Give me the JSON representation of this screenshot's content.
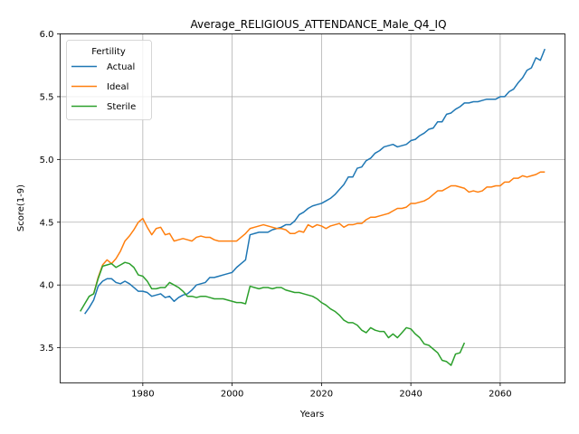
{
  "chart_data": {
    "type": "line",
    "title": "Average_RELIGIOUS_ATTENDANCE_Male_Q4_IQ",
    "xlabel": "Years",
    "ylabel": "Score(1-9)",
    "xlim": [
      1961.5,
      2074.5
    ],
    "ylim": [
      3.22,
      6.0
    ],
    "xticks": [
      1980,
      2000,
      2020,
      2040,
      2060
    ],
    "yticks": [
      3.5,
      4.0,
      4.5,
      5.0,
      5.5,
      6.0
    ],
    "xtick_labels": [
      "1980",
      "2000",
      "2020",
      "2040",
      "2060"
    ],
    "ytick_labels": [
      "3.5",
      "4.0",
      "4.5",
      "5.0",
      "5.5",
      "6.0"
    ],
    "grid": true,
    "legend": {
      "title": "Fertility",
      "placement": "top-left"
    },
    "series": [
      {
        "name": "Actual",
        "color": "#1f77b4",
        "points": [
          [
            1967,
            3.77
          ],
          [
            1968,
            3.82
          ],
          [
            1969,
            3.88
          ],
          [
            1970,
            3.99
          ],
          [
            1971,
            4.03
          ],
          [
            1972,
            4.05
          ],
          [
            1973,
            4.05
          ],
          [
            1974,
            4.02
          ],
          [
            1975,
            4.01
          ],
          [
            1976,
            4.03
          ],
          [
            1977,
            4.01
          ],
          [
            1978,
            3.98
          ],
          [
            1979,
            3.95
          ],
          [
            1980,
            3.95
          ],
          [
            1981,
            3.94
          ],
          [
            1982,
            3.91
          ],
          [
            1983,
            3.92
          ],
          [
            1984,
            3.93
          ],
          [
            1985,
            3.9
          ],
          [
            1986,
            3.91
          ],
          [
            1987,
            3.87
          ],
          [
            1988,
            3.9
          ],
          [
            1989,
            3.92
          ],
          [
            1990,
            3.93
          ],
          [
            1991,
            3.96
          ],
          [
            1992,
            4.0
          ],
          [
            1993,
            4.01
          ],
          [
            1994,
            4.02
          ],
          [
            1995,
            4.06
          ],
          [
            1996,
            4.06
          ],
          [
            1997,
            4.07
          ],
          [
            1998,
            4.08
          ],
          [
            1999,
            4.09
          ],
          [
            2000,
            4.1
          ],
          [
            2001,
            4.14
          ],
          [
            2002,
            4.17
          ],
          [
            2003,
            4.2
          ],
          [
            2004,
            4.4
          ],
          [
            2005,
            4.41
          ],
          [
            2006,
            4.42
          ],
          [
            2007,
            4.42
          ],
          [
            2008,
            4.42
          ],
          [
            2009,
            4.44
          ],
          [
            2010,
            4.45
          ],
          [
            2011,
            4.46
          ],
          [
            2012,
            4.48
          ],
          [
            2013,
            4.48
          ],
          [
            2014,
            4.51
          ],
          [
            2015,
            4.56
          ],
          [
            2016,
            4.58
          ],
          [
            2017,
            4.61
          ],
          [
            2018,
            4.63
          ],
          [
            2019,
            4.64
          ],
          [
            2020,
            4.65
          ],
          [
            2021,
            4.67
          ],
          [
            2022,
            4.69
          ],
          [
            2023,
            4.72
          ],
          [
            2024,
            4.76
          ],
          [
            2025,
            4.8
          ],
          [
            2026,
            4.86
          ],
          [
            2027,
            4.86
          ],
          [
            2028,
            4.93
          ],
          [
            2029,
            4.94
          ],
          [
            2030,
            4.99
          ],
          [
            2031,
            5.01
          ],
          [
            2032,
            5.05
          ],
          [
            2033,
            5.07
          ],
          [
            2034,
            5.1
          ],
          [
            2035,
            5.11
          ],
          [
            2036,
            5.12
          ],
          [
            2037,
            5.1
          ],
          [
            2038,
            5.11
          ],
          [
            2039,
            5.12
          ],
          [
            2040,
            5.15
          ],
          [
            2041,
            5.16
          ],
          [
            2042,
            5.19
          ],
          [
            2043,
            5.21
          ],
          [
            2044,
            5.24
          ],
          [
            2045,
            5.25
          ],
          [
            2046,
            5.3
          ],
          [
            2047,
            5.3
          ],
          [
            2048,
            5.36
          ],
          [
            2049,
            5.37
          ],
          [
            2050,
            5.4
          ],
          [
            2051,
            5.42
          ],
          [
            2052,
            5.45
          ],
          [
            2053,
            5.45
          ],
          [
            2054,
            5.46
          ],
          [
            2055,
            5.46
          ],
          [
            2056,
            5.47
          ],
          [
            2057,
            5.48
          ],
          [
            2058,
            5.48
          ],
          [
            2059,
            5.48
          ],
          [
            2060,
            5.5
          ],
          [
            2061,
            5.5
          ],
          [
            2062,
            5.54
          ],
          [
            2063,
            5.56
          ],
          [
            2064,
            5.61
          ],
          [
            2065,
            5.65
          ],
          [
            2066,
            5.71
          ],
          [
            2067,
            5.73
          ],
          [
            2068,
            5.81
          ],
          [
            2069,
            5.79
          ],
          [
            2070,
            5.88
          ]
        ]
      },
      {
        "name": "Ideal",
        "color": "#ff7f0e",
        "points": [
          [
            1969,
            3.93
          ],
          [
            1970,
            4.06
          ],
          [
            1971,
            4.16
          ],
          [
            1972,
            4.2
          ],
          [
            1973,
            4.17
          ],
          [
            1974,
            4.21
          ],
          [
            1975,
            4.27
          ],
          [
            1976,
            4.35
          ],
          [
            1977,
            4.39
          ],
          [
            1978,
            4.44
          ],
          [
            1979,
            4.5
          ],
          [
            1980,
            4.53
          ],
          [
            1981,
            4.46
          ],
          [
            1982,
            4.4
          ],
          [
            1983,
            4.45
          ],
          [
            1984,
            4.46
          ],
          [
            1985,
            4.4
          ],
          [
            1986,
            4.41
          ],
          [
            1987,
            4.35
          ],
          [
            1988,
            4.36
          ],
          [
            1989,
            4.37
          ],
          [
            1990,
            4.36
          ],
          [
            1991,
            4.35
          ],
          [
            1992,
            4.38
          ],
          [
            1993,
            4.39
          ],
          [
            1994,
            4.38
          ],
          [
            1995,
            4.38
          ],
          [
            1996,
            4.36
          ],
          [
            1997,
            4.35
          ],
          [
            1998,
            4.35
          ],
          [
            1999,
            4.35
          ],
          [
            2000,
            4.35
          ],
          [
            2001,
            4.35
          ],
          [
            2002,
            4.38
          ],
          [
            2003,
            4.41
          ],
          [
            2004,
            4.45
          ],
          [
            2005,
            4.46
          ],
          [
            2006,
            4.47
          ],
          [
            2007,
            4.48
          ],
          [
            2008,
            4.47
          ],
          [
            2009,
            4.46
          ],
          [
            2010,
            4.45
          ],
          [
            2011,
            4.45
          ],
          [
            2012,
            4.44
          ],
          [
            2013,
            4.41
          ],
          [
            2014,
            4.41
          ],
          [
            2015,
            4.43
          ],
          [
            2016,
            4.42
          ],
          [
            2017,
            4.48
          ],
          [
            2018,
            4.46
          ],
          [
            2019,
            4.48
          ],
          [
            2020,
            4.47
          ],
          [
            2021,
            4.45
          ],
          [
            2022,
            4.47
          ],
          [
            2023,
            4.48
          ],
          [
            2024,
            4.49
          ],
          [
            2025,
            4.46
          ],
          [
            2026,
            4.48
          ],
          [
            2027,
            4.48
          ],
          [
            2028,
            4.49
          ],
          [
            2029,
            4.49
          ],
          [
            2030,
            4.52
          ],
          [
            2031,
            4.54
          ],
          [
            2032,
            4.54
          ],
          [
            2033,
            4.55
          ],
          [
            2034,
            4.56
          ],
          [
            2035,
            4.57
          ],
          [
            2036,
            4.59
          ],
          [
            2037,
            4.61
          ],
          [
            2038,
            4.61
          ],
          [
            2039,
            4.62
          ],
          [
            2040,
            4.65
          ],
          [
            2041,
            4.65
          ],
          [
            2042,
            4.66
          ],
          [
            2043,
            4.67
          ],
          [
            2044,
            4.69
          ],
          [
            2045,
            4.72
          ],
          [
            2046,
            4.75
          ],
          [
            2047,
            4.75
          ],
          [
            2048,
            4.77
          ],
          [
            2049,
            4.79
          ],
          [
            2050,
            4.79
          ],
          [
            2051,
            4.78
          ],
          [
            2052,
            4.77
          ],
          [
            2053,
            4.74
          ],
          [
            2054,
            4.75
          ],
          [
            2055,
            4.74
          ],
          [
            2056,
            4.75
          ],
          [
            2057,
            4.78
          ],
          [
            2058,
            4.78
          ],
          [
            2059,
            4.79
          ],
          [
            2060,
            4.79
          ],
          [
            2061,
            4.82
          ],
          [
            2062,
            4.82
          ],
          [
            2063,
            4.85
          ],
          [
            2064,
            4.85
          ],
          [
            2065,
            4.87
          ],
          [
            2066,
            4.86
          ],
          [
            2067,
            4.87
          ],
          [
            2068,
            4.88
          ],
          [
            2069,
            4.9
          ],
          [
            2070,
            4.9
          ]
        ]
      },
      {
        "name": "Sterile",
        "color": "#2ca02c",
        "points": [
          [
            1966,
            3.79
          ],
          [
            1967,
            3.85
          ],
          [
            1968,
            3.91
          ],
          [
            1969,
            3.93
          ],
          [
            1970,
            4.05
          ],
          [
            1971,
            4.15
          ],
          [
            1972,
            4.16
          ],
          [
            1973,
            4.17
          ],
          [
            1974,
            4.14
          ],
          [
            1975,
            4.16
          ],
          [
            1976,
            4.18
          ],
          [
            1977,
            4.17
          ],
          [
            1978,
            4.14
          ],
          [
            1979,
            4.08
          ],
          [
            1980,
            4.07
          ],
          [
            1981,
            4.03
          ],
          [
            1982,
            3.97
          ],
          [
            1983,
            3.97
          ],
          [
            1984,
            3.98
          ],
          [
            1985,
            3.98
          ],
          [
            1986,
            4.02
          ],
          [
            1987,
            4.0
          ],
          [
            1988,
            3.98
          ],
          [
            1989,
            3.95
          ],
          [
            1990,
            3.91
          ],
          [
            1991,
            3.91
          ],
          [
            1992,
            3.9
          ],
          [
            1993,
            3.91
          ],
          [
            1994,
            3.91
          ],
          [
            1995,
            3.9
          ],
          [
            1996,
            3.89
          ],
          [
            1997,
            3.89
          ],
          [
            1998,
            3.89
          ],
          [
            1999,
            3.88
          ],
          [
            2000,
            3.87
          ],
          [
            2001,
            3.86
          ],
          [
            2002,
            3.86
          ],
          [
            2003,
            3.85
          ],
          [
            2004,
            3.99
          ],
          [
            2005,
            3.98
          ],
          [
            2006,
            3.97
          ],
          [
            2007,
            3.98
          ],
          [
            2008,
            3.98
          ],
          [
            2009,
            3.97
          ],
          [
            2010,
            3.98
          ],
          [
            2011,
            3.98
          ],
          [
            2012,
            3.96
          ],
          [
            2013,
            3.95
          ],
          [
            2014,
            3.94
          ],
          [
            2015,
            3.94
          ],
          [
            2016,
            3.93
          ],
          [
            2017,
            3.92
          ],
          [
            2018,
            3.91
          ],
          [
            2019,
            3.89
          ],
          [
            2020,
            3.86
          ],
          [
            2021,
            3.84
          ],
          [
            2022,
            3.81
          ],
          [
            2023,
            3.79
          ],
          [
            2024,
            3.76
          ],
          [
            2025,
            3.72
          ],
          [
            2026,
            3.7
          ],
          [
            2027,
            3.7
          ],
          [
            2028,
            3.68
          ],
          [
            2029,
            3.64
          ],
          [
            2030,
            3.62
          ],
          [
            2031,
            3.66
          ],
          [
            2032,
            3.64
          ],
          [
            2033,
            3.63
          ],
          [
            2034,
            3.63
          ],
          [
            2035,
            3.58
          ],
          [
            2036,
            3.61
          ],
          [
            2037,
            3.58
          ],
          [
            2038,
            3.62
          ],
          [
            2039,
            3.66
          ],
          [
            2040,
            3.65
          ],
          [
            2041,
            3.61
          ],
          [
            2042,
            3.58
          ],
          [
            2043,
            3.53
          ],
          [
            2044,
            3.52
          ],
          [
            2045,
            3.49
          ],
          [
            2046,
            3.46
          ],
          [
            2047,
            3.4
          ],
          [
            2048,
            3.39
          ],
          [
            2049,
            3.36
          ],
          [
            2050,
            3.45
          ],
          [
            2051,
            3.46
          ],
          [
            2052,
            3.54
          ]
        ]
      }
    ]
  }
}
